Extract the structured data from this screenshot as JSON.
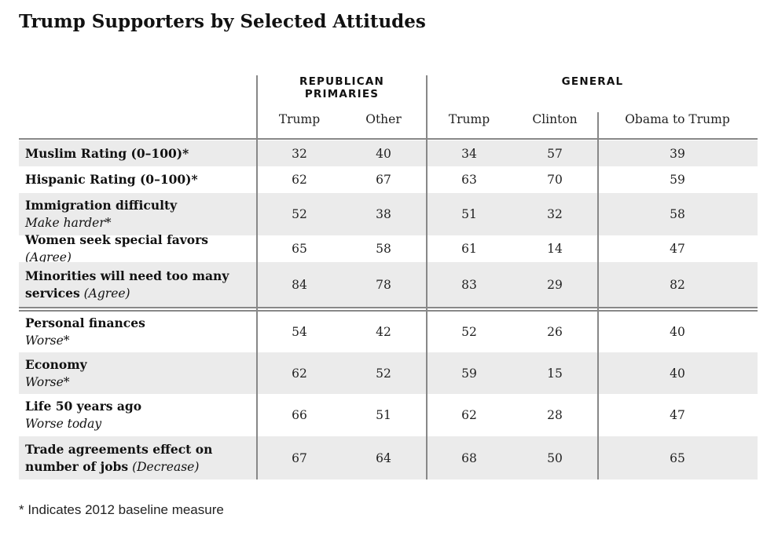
{
  "title": "Trump Supporters by Selected Attitudes",
  "groups": {
    "republican_primaries": "REPUBLICAN PRIMARIES",
    "general": "GENERAL"
  },
  "columns": [
    "Trump",
    "Other",
    "Trump",
    "Clinton",
    "Obama to Trump"
  ],
  "footnote": "* Indicates 2012 baseline measure",
  "chart_data": {
    "type": "table",
    "title": "Trump Supporters by Selected Attitudes",
    "column_groups": [
      {
        "name": "REPUBLICAN PRIMARIES",
        "columns": [
          "Trump",
          "Other"
        ]
      },
      {
        "name": "GENERAL",
        "columns": [
          "Trump",
          "Clinton",
          "Obama to Trump"
        ]
      }
    ],
    "rows": [
      {
        "label": "Muslim Rating (0–100)*",
        "note": "",
        "values": [
          32,
          40,
          34,
          57,
          39
        ]
      },
      {
        "label": "Hispanic Rating (0–100)*",
        "note": "",
        "values": [
          62,
          67,
          63,
          70,
          59
        ]
      },
      {
        "label": "Immigration difficulty",
        "note": "Make harder*",
        "values": [
          52,
          38,
          51,
          32,
          58
        ]
      },
      {
        "label": "Women seek special favors",
        "note": "(Agree)",
        "values": [
          65,
          58,
          61,
          14,
          47
        ]
      },
      {
        "label": "Minorities will need too many services",
        "note": "(Agree)",
        "values": [
          84,
          78,
          83,
          29,
          82
        ]
      },
      {
        "label": "Personal finances",
        "note": "Worse*",
        "values": [
          54,
          42,
          52,
          26,
          40
        ]
      },
      {
        "label": "Economy",
        "note": "Worse*",
        "values": [
          62,
          52,
          59,
          15,
          40
        ]
      },
      {
        "label": "Life 50 years ago",
        "note": "Worse today",
        "values": [
          66,
          51,
          62,
          28,
          47
        ]
      },
      {
        "label": "Trade agreements effect on number of jobs",
        "note": "(Decrease)",
        "values": [
          67,
          64,
          68,
          50,
          65
        ]
      }
    ]
  }
}
